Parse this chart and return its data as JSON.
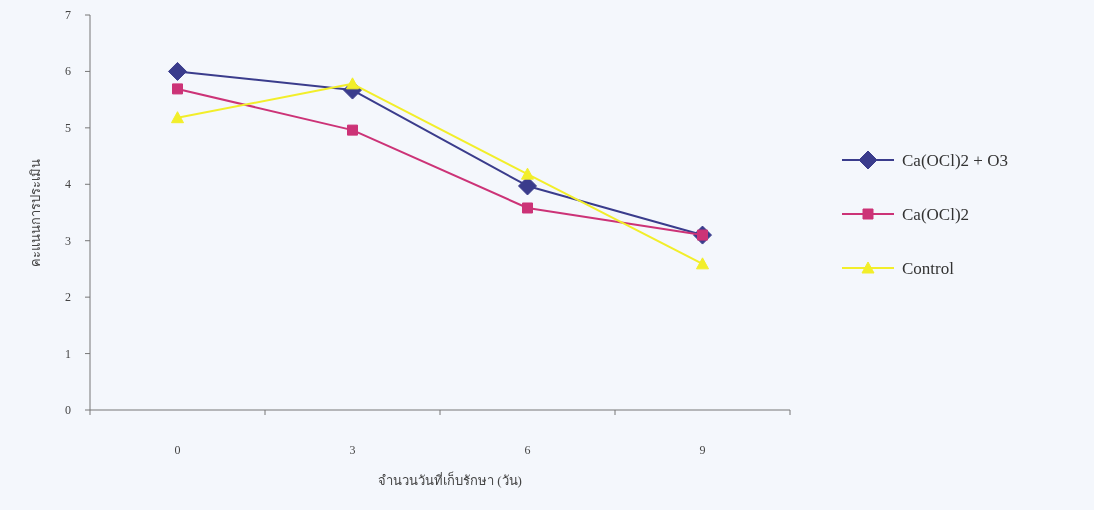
{
  "chart_data": {
    "type": "line",
    "xlabel": "จำนวนวันที่เก็บรักษา (วัน)",
    "ylabel": "คะแนนการประเมิน",
    "categories": [
      "0",
      "3",
      "6",
      "9"
    ],
    "ylim": [
      0,
      7
    ],
    "yticks": [
      0,
      1,
      2,
      3,
      4,
      5,
      6,
      7
    ],
    "grid": false,
    "legend": "right",
    "series": [
      {
        "name": "Ca(OCl)2 + O3",
        "color": "#3a3c8c",
        "marker": "diamond",
        "values": [
          6.0,
          5.67,
          3.97,
          3.1
        ]
      },
      {
        "name": "Ca(OCl)2",
        "color": "#cc3377",
        "marker": "square",
        "values": [
          5.69,
          4.96,
          3.58,
          3.1
        ]
      },
      {
        "name": "Control",
        "color": "#f2ee2a",
        "marker": "triangle",
        "values": [
          5.18,
          5.78,
          4.18,
          2.59
        ]
      }
    ]
  }
}
